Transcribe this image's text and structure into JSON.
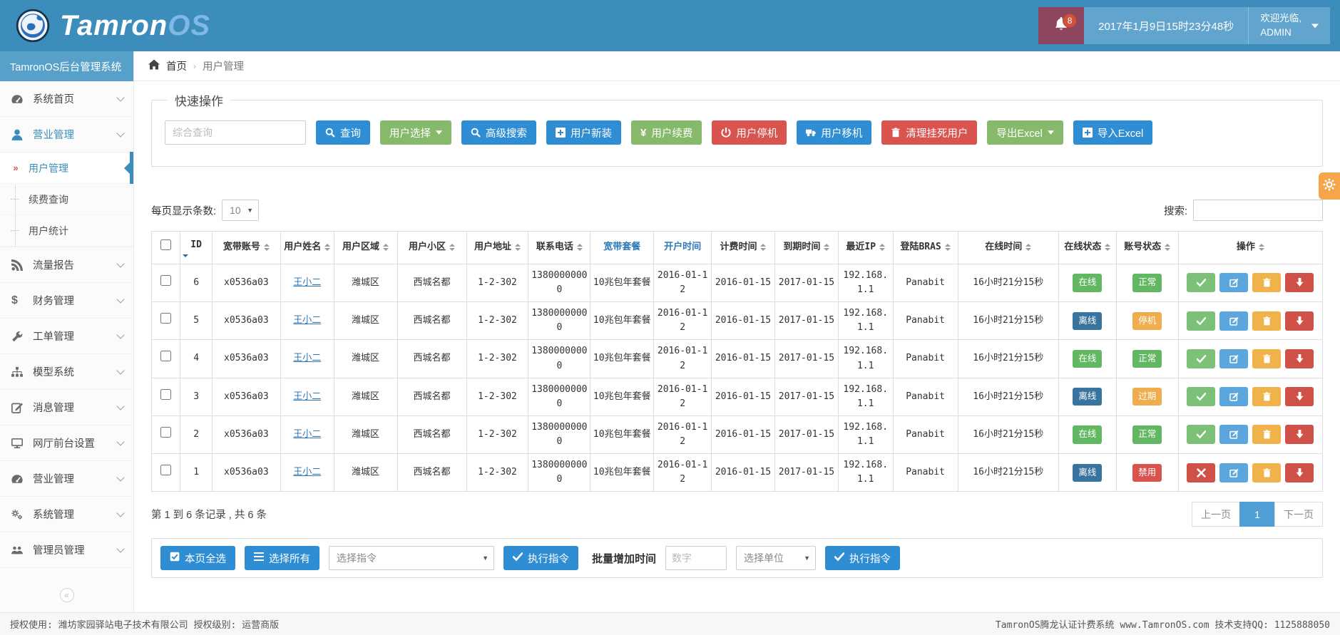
{
  "brand": {
    "logo_text_main": "Tamron",
    "logo_text_accent": "OS",
    "sidebar_title": "TamronOS后台管理系统"
  },
  "header": {
    "notif_count": "8",
    "datetime": "2017年1月9日15时23分48秒",
    "welcome": "欢迎光临,",
    "username": "ADMIN"
  },
  "breadcrumb": {
    "home": "首页",
    "separator": "›",
    "current": "用户管理"
  },
  "sidebar": {
    "items": [
      {
        "label": "系统首页",
        "icon": "gauge-icon"
      },
      {
        "label": "营业管理",
        "icon": "user-icon",
        "active": true,
        "expanded": true,
        "children": [
          {
            "label": "用户管理",
            "active": true
          },
          {
            "label": "续费查询"
          },
          {
            "label": "用户统计"
          }
        ]
      },
      {
        "label": "流量报告",
        "icon": "rss-icon"
      },
      {
        "label": "财务管理",
        "icon": "dollar-icon"
      },
      {
        "label": "工单管理",
        "icon": "wrench-icon"
      },
      {
        "label": "模型系统",
        "icon": "sitemap-icon"
      },
      {
        "label": "消息管理",
        "icon": "message-edit-icon"
      },
      {
        "label": "网厅前台设置",
        "icon": "desktop-icon"
      },
      {
        "label": "营业管理",
        "icon": "gauge-icon"
      },
      {
        "label": "系统管理",
        "icon": "gears-icon"
      },
      {
        "label": "管理员管理",
        "icon": "users-icon"
      }
    ],
    "collapse_glyph": "«"
  },
  "quick_ops": {
    "legend": "快速操作",
    "search_placeholder": "综合查询",
    "buttons": [
      {
        "label": "查询",
        "icon": "search-icon",
        "style": "blue"
      },
      {
        "label": "用户选择",
        "icon": "caret-down-icon",
        "style": "green",
        "caret": true
      },
      {
        "label": "高级搜索",
        "icon": "search-icon",
        "style": "blue"
      },
      {
        "label": "用户新装",
        "icon": "plus-square-icon",
        "style": "blue"
      },
      {
        "label": "用户续费",
        "icon": "yen-icon",
        "style": "green"
      },
      {
        "label": "用户停机",
        "icon": "power-icon",
        "style": "red"
      },
      {
        "label": "用户移机",
        "icon": "truck-icon",
        "style": "blue"
      },
      {
        "label": "清理挂死用户",
        "icon": "trash-icon",
        "style": "red"
      },
      {
        "label": "导出Excel",
        "icon": "caret-down-icon",
        "style": "green",
        "caret": true
      },
      {
        "label": "导入Excel",
        "icon": "plus-square-icon",
        "style": "blue"
      }
    ]
  },
  "table_controls": {
    "page_size_label": "每页显示条数:",
    "page_size_value": "10",
    "search_label": "搜索:"
  },
  "table": {
    "columns": [
      {
        "key": "checkbox"
      },
      {
        "key": "id",
        "label": "ID",
        "sorted": "desc"
      },
      {
        "key": "account",
        "label": "宽带账号",
        "sortable": true
      },
      {
        "key": "name",
        "label": "用户姓名",
        "sortable": true
      },
      {
        "key": "region",
        "label": "用户区域",
        "sortable": true
      },
      {
        "key": "community",
        "label": "用户小区",
        "sortable": true
      },
      {
        "key": "address",
        "label": "用户地址",
        "sortable": true
      },
      {
        "key": "phone",
        "label": "联系电话",
        "sortable": true
      },
      {
        "key": "plan",
        "label": "宽带套餐",
        "link": true
      },
      {
        "key": "open_date",
        "label": "开户时间",
        "link": true
      },
      {
        "key": "bill_date",
        "label": "计费时间",
        "sortable": true
      },
      {
        "key": "expire_date",
        "label": "到期时间",
        "sortable": true
      },
      {
        "key": "ip",
        "label": "最近IP",
        "sortable": true
      },
      {
        "key": "bras",
        "label": "登陆BRAS",
        "sortable": true
      },
      {
        "key": "online_time",
        "label": "在线时间",
        "sortable": true
      },
      {
        "key": "online_status",
        "label": "在线状态",
        "sortable": true
      },
      {
        "key": "account_status",
        "label": "账号状态",
        "sortable": true
      },
      {
        "key": "actions",
        "label": "操作",
        "sortable": true
      }
    ],
    "rows": [
      {
        "id": "6",
        "account": "x0536a03",
        "name": "王小二",
        "region": "潍城区",
        "community": "西城名都",
        "address": "1-2-302",
        "phone": "13800000000",
        "plan": "10兆包年套餐",
        "open_date": "2016-01-12",
        "bill_date": "2016-01-15",
        "expire_date": "2017-01-15",
        "ip": "192.168.1.1",
        "bras": "Panabit",
        "online_time": "16小时21分15秒",
        "online_status": {
          "label": "在线",
          "type": "success"
        },
        "account_status": {
          "label": "正常",
          "type": "success"
        },
        "actions": [
          "check",
          "edit",
          "delete",
          "download"
        ]
      },
      {
        "id": "5",
        "account": "x0536a03",
        "name": "王小二",
        "region": "潍城区",
        "community": "西城名都",
        "address": "1-2-302",
        "phone": "13800000000",
        "plan": "10兆包年套餐",
        "open_date": "2016-01-12",
        "bill_date": "2016-01-15",
        "expire_date": "2017-01-15",
        "ip": "192.168.1.1",
        "bras": "Panabit",
        "online_time": "16小时21分15秒",
        "online_status": {
          "label": "离线",
          "type": "offline"
        },
        "account_status": {
          "label": "停机",
          "type": "warning"
        },
        "actions": [
          "check",
          "edit",
          "delete",
          "download"
        ]
      },
      {
        "id": "4",
        "account": "x0536a03",
        "name": "王小二",
        "region": "潍城区",
        "community": "西城名都",
        "address": "1-2-302",
        "phone": "13800000000",
        "plan": "10兆包年套餐",
        "open_date": "2016-01-12",
        "bill_date": "2016-01-15",
        "expire_date": "2017-01-15",
        "ip": "192.168.1.1",
        "bras": "Panabit",
        "online_time": "16小时21分15秒",
        "online_status": {
          "label": "在线",
          "type": "success"
        },
        "account_status": {
          "label": "正常",
          "type": "success"
        },
        "actions": [
          "check",
          "edit",
          "delete",
          "download"
        ]
      },
      {
        "id": "3",
        "account": "x0536a03",
        "name": "王小二",
        "region": "潍城区",
        "community": "西城名都",
        "address": "1-2-302",
        "phone": "13800000000",
        "plan": "10兆包年套餐",
        "open_date": "2016-01-12",
        "bill_date": "2016-01-15",
        "expire_date": "2017-01-15",
        "ip": "192.168.1.1",
        "bras": "Panabit",
        "online_time": "16小时21分15秒",
        "online_status": {
          "label": "离线",
          "type": "offline"
        },
        "account_status": {
          "label": "过期",
          "type": "warning"
        },
        "actions": [
          "check",
          "edit",
          "delete",
          "download"
        ]
      },
      {
        "id": "2",
        "account": "x0536a03",
        "name": "王小二",
        "region": "潍城区",
        "community": "西城名都",
        "address": "1-2-302",
        "phone": "13800000000",
        "plan": "10兆包年套餐",
        "open_date": "2016-01-12",
        "bill_date": "2016-01-15",
        "expire_date": "2017-01-15",
        "ip": "192.168.1.1",
        "bras": "Panabit",
        "online_time": "16小时21分15秒",
        "online_status": {
          "label": "在线",
          "type": "success"
        },
        "account_status": {
          "label": "正常",
          "type": "success"
        },
        "actions": [
          "check",
          "edit",
          "delete",
          "download"
        ]
      },
      {
        "id": "1",
        "account": "x0536a03",
        "name": "王小二",
        "region": "潍城区",
        "community": "西城名都",
        "address": "1-2-302",
        "phone": "13800000000",
        "plan": "10兆包年套餐",
        "open_date": "2016-01-12",
        "bill_date": "2016-01-15",
        "expire_date": "2017-01-15",
        "ip": "192.168.1.1",
        "bras": "Panabit",
        "online_time": "16小时21分15秒",
        "online_status": {
          "label": "离线",
          "type": "offline"
        },
        "account_status": {
          "label": "禁用",
          "type": "danger"
        },
        "actions": [
          "cross",
          "edit",
          "delete",
          "download"
        ]
      }
    ],
    "summary": "第 1 到 6 条记录 , 共 6 条"
  },
  "pagination": {
    "prev": "上一页",
    "current": "1",
    "next": "下一页"
  },
  "batch": {
    "select_page_label": "本页全选",
    "select_all_label": "选择所有",
    "command_placeholder": "选择指令",
    "execute_label": "执行指令",
    "batch_time_label": "批量增加时间",
    "number_placeholder": "数字",
    "unit_placeholder": "选择单位",
    "execute2_label": "执行指令"
  },
  "footer": {
    "left_text": "授权使用: 潍坊家园驿站电子技术有限公司  授权级别: 运营商版",
    "right_text": "TamronOS腾龙认证计费系统 www.TamronOS.com 技术支持QQ: 1125888050"
  },
  "colors": {
    "header_bg": "#3c8dbc",
    "sidebar_band_bg": "#56a0c9",
    "notification_block_bg": "#8e4560",
    "notification_badge": "#cf5240",
    "primary_button": "#2f8ed3",
    "green_button": "#86b96a",
    "danger_button": "#d9534f",
    "warning_badge": "#f0ad4e",
    "online_badge": "#62b862",
    "offline_badge": "#38749e",
    "active_page": "#4f9ed5",
    "gear_tab": "#f7a54a",
    "active_link": "#3c8dbc"
  }
}
